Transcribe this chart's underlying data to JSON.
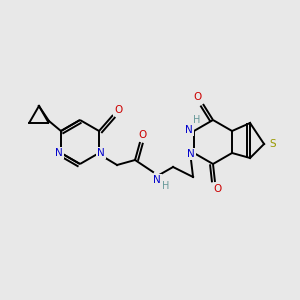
{
  "bg": "#e8e8e8",
  "bond_lw": 1.4,
  "font_size": 7.5,
  "N_color": "#0000cc",
  "O_color": "#cc0000",
  "S_color": "#999900",
  "H_color": "#669999",
  "C_color": "#000000",
  "xlim": [
    0,
    300
  ],
  "ylim": [
    0,
    300
  ],
  "figsize": [
    3.0,
    3.0
  ],
  "dpi": 100
}
